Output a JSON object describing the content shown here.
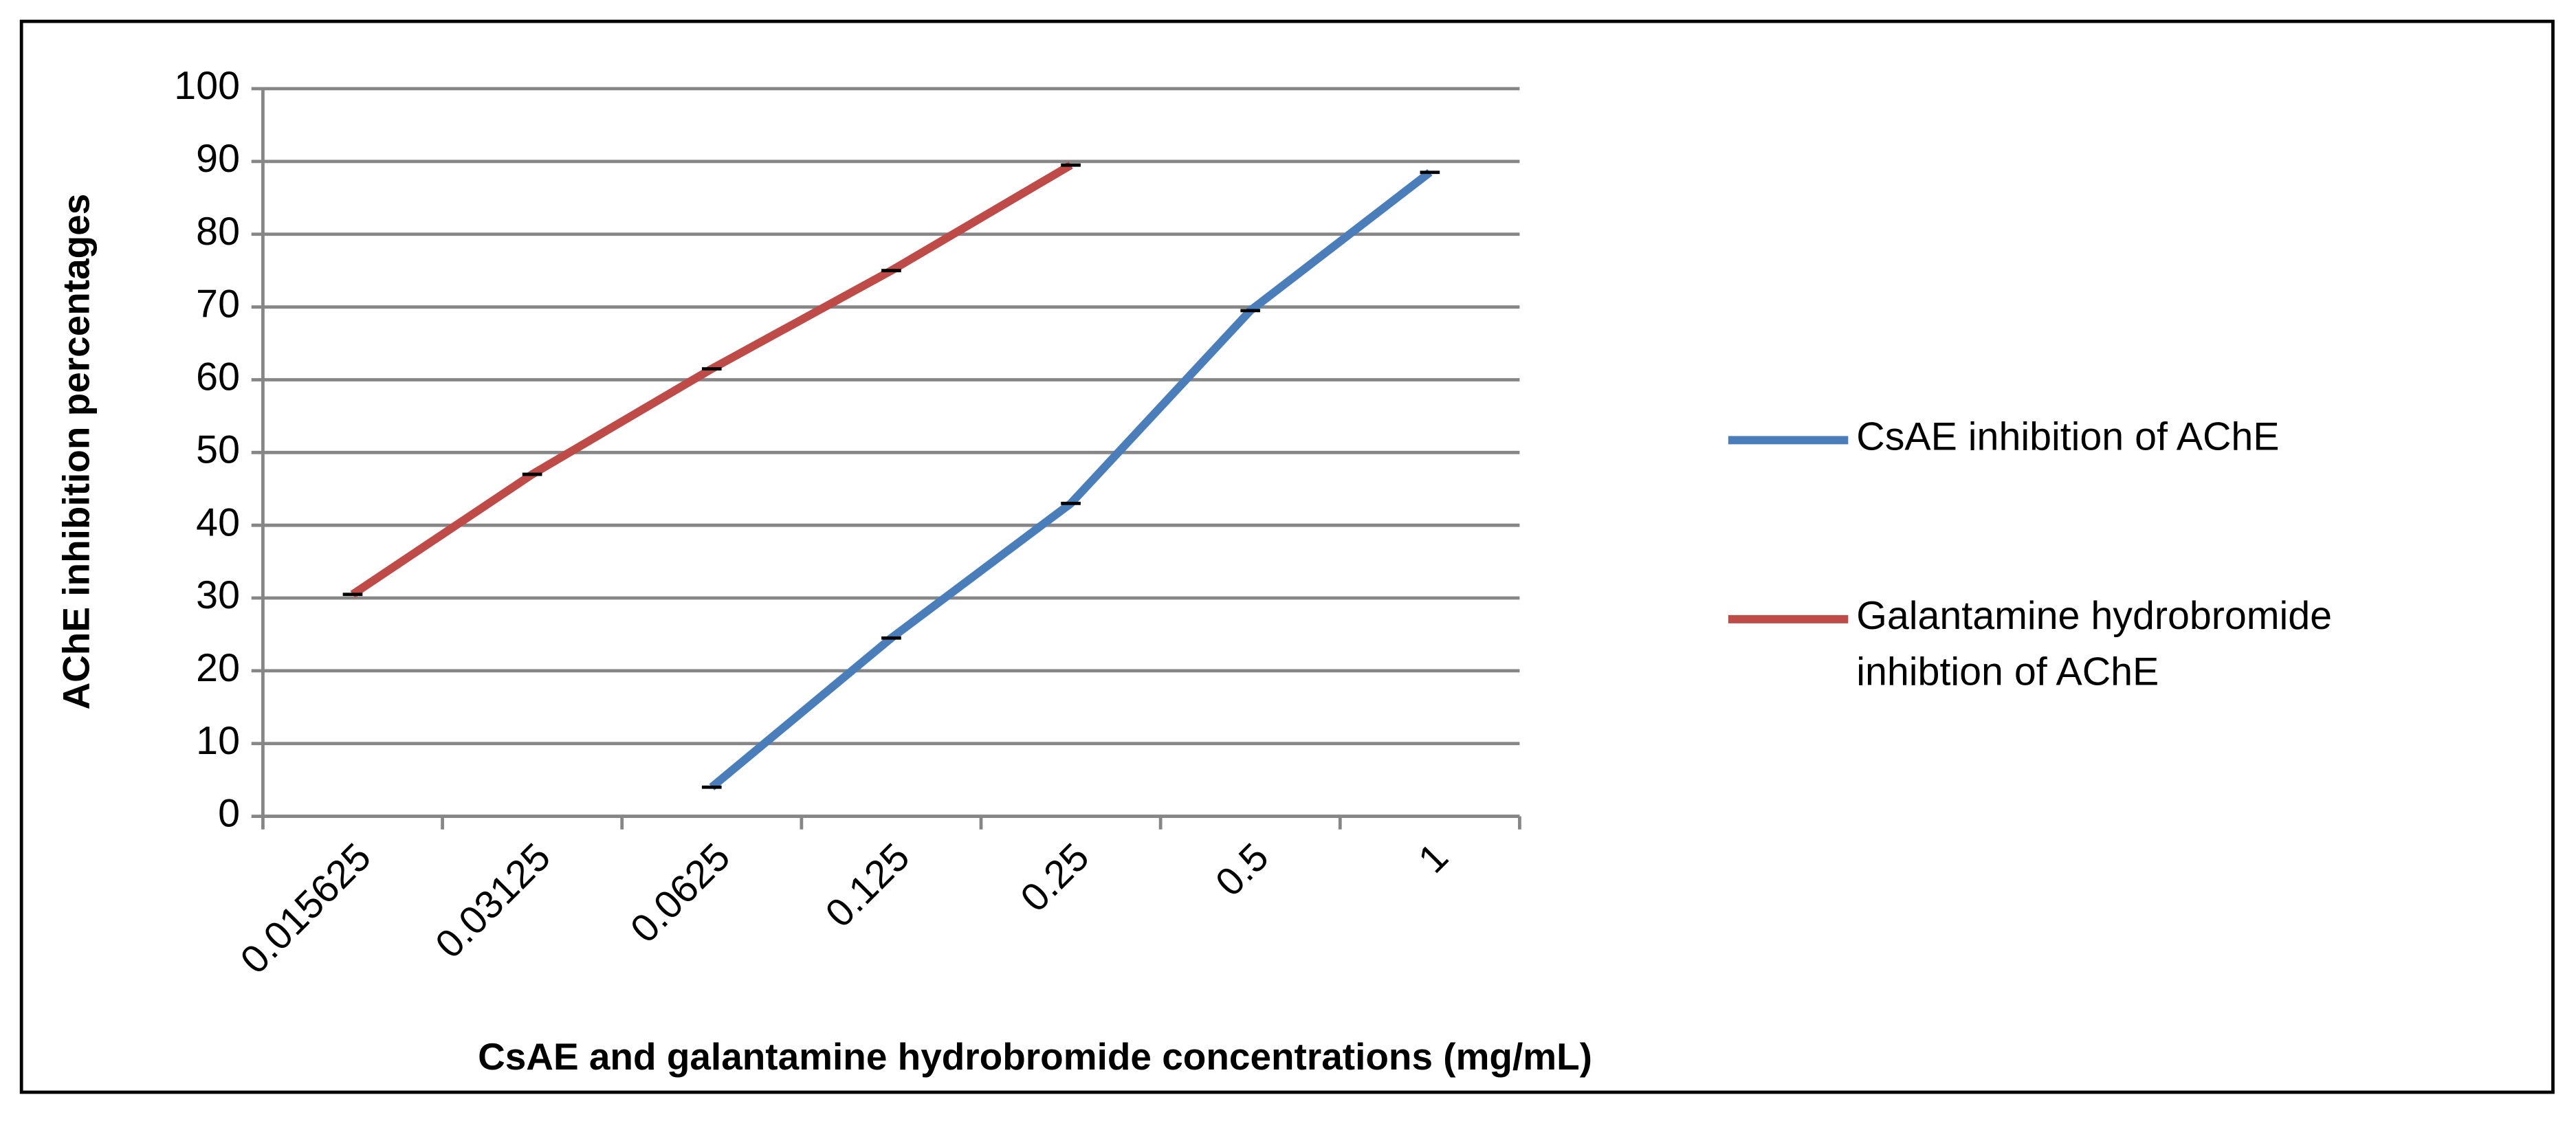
{
  "chart_data": {
    "type": "line",
    "x_label": "CsAE and galantamine hydrobromide concentrations (mg/mL)",
    "y_label": "AChE inhibition percentages",
    "categories": [
      "0.015625",
      "0.03125",
      "0.0625",
      "0.125",
      "0.25",
      "0.5",
      "1"
    ],
    "series": [
      {
        "name": "CsAE inhibition of AChE",
        "color": "#4a7ebb",
        "values": [
          null,
          null,
          4,
          24.5,
          43,
          69.5,
          88.5
        ]
      },
      {
        "name": "Galantamine hydrobromide inhibtion of AChE",
        "color": "#be4b48",
        "values": [
          30.5,
          47,
          61.5,
          75,
          89.5,
          null,
          null
        ]
      }
    ],
    "ylim": [
      0,
      100
    ],
    "yticks": [
      0,
      10,
      20,
      30,
      40,
      50,
      60,
      70,
      80,
      90,
      100
    ],
    "grid": true,
    "legend": "right"
  }
}
